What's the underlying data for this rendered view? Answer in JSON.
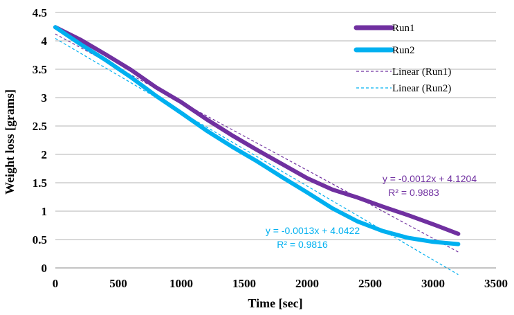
{
  "chart_data": {
    "type": "line",
    "xlabel": "Time [sec]",
    "ylabel": "Weight loss [grams]",
    "xlim": [
      0,
      3500
    ],
    "ylim": [
      0,
      4.5
    ],
    "x_ticks": [
      "0",
      "500",
      "1000",
      "1500",
      "2000",
      "2500",
      "3000",
      "3500"
    ],
    "y_ticks": [
      "0",
      "0.5",
      "1",
      "1.5",
      "2",
      "2.5",
      "3",
      "3.5",
      "4",
      "4.5"
    ],
    "grid": "horizontal",
    "legend_position": "top-right",
    "series": [
      {
        "name": "Run1",
        "color": "#7030a0",
        "x": [
          0,
          200,
          400,
          600,
          800,
          1000,
          1200,
          1400,
          1600,
          1800,
          2000,
          2200,
          2400,
          2600,
          2800,
          3000,
          3200
        ],
        "y": [
          4.24,
          4.02,
          3.76,
          3.49,
          3.18,
          2.92,
          2.62,
          2.34,
          2.08,
          1.83,
          1.58,
          1.38,
          1.24,
          1.08,
          0.93,
          0.77,
          0.6
        ]
      },
      {
        "name": "Run2",
        "color": "#00b0f0",
        "x": [
          0,
          200,
          400,
          600,
          800,
          1000,
          1200,
          1400,
          1600,
          1800,
          2000,
          2200,
          2400,
          2600,
          2800,
          3000,
          3200
        ],
        "y": [
          4.24,
          3.94,
          3.66,
          3.36,
          3.03,
          2.73,
          2.42,
          2.14,
          1.88,
          1.6,
          1.33,
          1.05,
          0.82,
          0.65,
          0.53,
          0.46,
          0.42
        ]
      }
    ],
    "trendlines": [
      {
        "name": "Linear (Run1)",
        "color": "#7030a0",
        "slope": -0.0012,
        "intercept": 4.1204,
        "x_range": [
          0,
          3200
        ],
        "equation": "y = -0.0012x + 4.1204",
        "r2": "R² = 0.9883"
      },
      {
        "name": "Linear (Run2)",
        "color": "#00b0f0",
        "slope": -0.0013,
        "intercept": 4.0422,
        "x_range": [
          0,
          3200
        ],
        "equation": "y = -0.0013x + 4.0422",
        "r2": "R² = 0.9816"
      }
    ]
  }
}
